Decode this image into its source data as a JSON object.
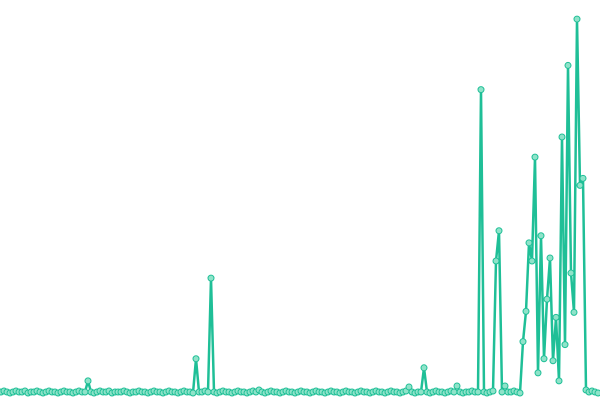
{
  "chart_data": {
    "type": "line",
    "color": "#1fbf97",
    "marker_fill": "#8fe3c9",
    "ylim": [
      0,
      380
    ],
    "values": [
      1,
      2,
      1,
      0,
      1,
      2,
      1,
      1,
      2,
      0,
      1,
      1,
      2,
      1,
      0,
      1,
      2,
      1,
      1,
      0,
      1,
      2,
      1,
      1,
      0,
      1,
      2,
      1,
      1,
      12,
      1,
      0,
      1,
      2,
      1,
      1,
      2,
      0,
      1,
      1,
      1,
      2,
      1,
      0,
      1,
      1,
      2,
      1,
      1,
      0,
      1,
      2,
      1,
      1,
      0,
      1,
      2,
      1,
      1,
      0,
      1,
      2,
      1,
      1,
      0,
      34,
      1,
      1,
      2,
      1,
      114,
      1,
      0,
      1,
      2,
      1,
      1,
      0,
      1,
      2,
      1,
      1,
      0,
      1,
      2,
      1,
      3,
      1,
      0,
      1,
      2,
      1,
      1,
      0,
      1,
      2,
      1,
      1,
      0,
      1,
      2,
      1,
      1,
      0,
      1,
      2,
      1,
      1,
      0,
      1,
      2,
      1,
      1,
      0,
      1,
      2,
      1,
      1,
      0,
      1,
      2,
      1,
      1,
      0,
      1,
      2,
      1,
      1,
      0,
      1,
      2,
      1,
      1,
      0,
      1,
      2,
      6,
      1,
      0,
      1,
      1,
      25,
      1,
      0,
      1,
      2,
      1,
      1,
      0,
      1,
      2,
      1,
      7,
      1,
      0,
      1,
      1,
      2,
      1,
      1,
      301,
      1,
      0,
      1,
      2,
      131,
      161,
      1,
      7,
      1,
      1,
      2,
      1,
      0,
      51,
      81,
      149,
      131,
      234,
      20,
      156,
      34,
      93,
      134,
      32,
      75,
      12,
      254,
      48,
      325,
      119,
      80,
      371,
      206,
      213,
      3,
      1,
      2,
      1,
      0
    ]
  }
}
